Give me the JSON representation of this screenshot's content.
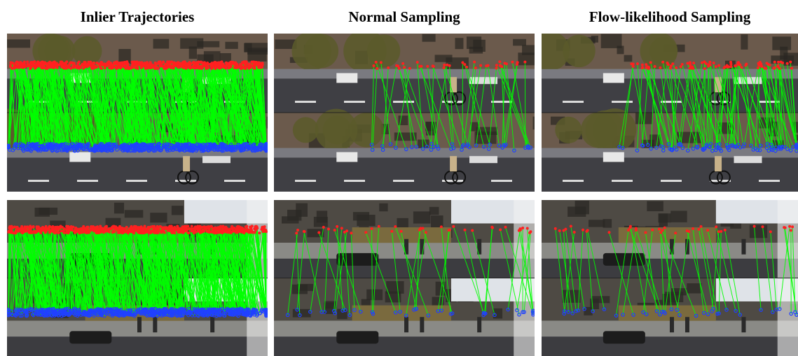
{
  "figure": {
    "column_titles": [
      "Inlier Trajectories",
      "Normal Sampling",
      "Flow-likelihood Sampling"
    ],
    "colors": {
      "trajectory_line": "#00ff00",
      "first_frame_points": "#ff2020",
      "second_frame_points": "#2040ff"
    },
    "rows": [
      {
        "scene": "street-intersection-with-cyclist",
        "panels": [
          {
            "density": "dense"
          },
          {
            "density": "sparse"
          },
          {
            "density": "medium"
          }
        ]
      },
      {
        "scene": "street-with-tram-and-pedestrians",
        "panels": [
          {
            "density": "dense"
          },
          {
            "density": "sparse"
          },
          {
            "density": "sparse"
          }
        ]
      }
    ]
  }
}
